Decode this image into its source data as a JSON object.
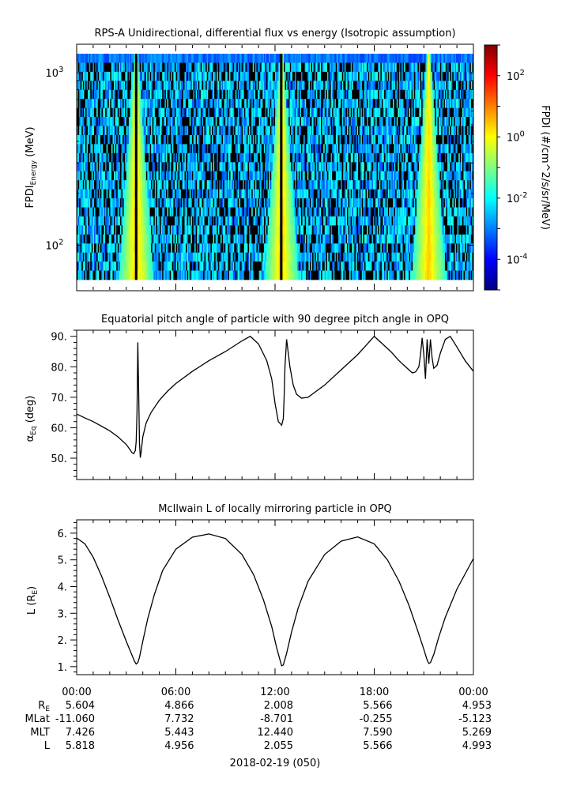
{
  "chart_data": [
    {
      "type": "heatmap",
      "title": "RPS-A Unidirectional, differential flux vs energy (Isotropic assumption)",
      "ylabel_main": "FPDI",
      "ylabel_sub": "Energy",
      "ylabel_unit": "(MeV)",
      "yscale": "log",
      "ylim": [
        55,
        1450
      ],
      "yticks": [
        {
          "value": 100,
          "base": "10",
          "exp": "2"
        },
        {
          "value": 1000,
          "base": "10",
          "exp": "3"
        }
      ],
      "xlim_hours": [
        0,
        24
      ],
      "energy_channels": 25,
      "time_bins": 320,
      "bright_bands_hours": [
        3.6,
        12.4,
        21.3
      ],
      "dark_bands_hours": [
        3.6,
        12.4
      ],
      "colorbar": {
        "label": "FPDI (#/cm^2/s/sr/MeV)",
        "scale": "log",
        "range_log10": [
          -5,
          3
        ],
        "ticks": [
          {
            "value": 2,
            "base": "10",
            "exp": "2"
          },
          {
            "value": 0,
            "base": "10",
            "exp": "0"
          },
          {
            "value": -2,
            "base": "10",
            "exp": "-2"
          },
          {
            "value": -4,
            "base": "10",
            "exp": "-4"
          }
        ],
        "colormap": [
          "#00007f",
          "#0000ff",
          "#007fff",
          "#00ffff",
          "#7fff7f",
          "#ffff00",
          "#ff7f00",
          "#ff0000",
          "#7f0000"
        ]
      }
    },
    {
      "type": "line",
      "title": "Equatorial pitch angle of particle with 90 degree pitch angle in OPQ",
      "ylabel_sym": "α",
      "ylabel_sub": "Eq",
      "ylabel_unit": "(deg)",
      "ylim": [
        43,
        92
      ],
      "yticks": [
        50,
        60,
        70,
        80,
        90
      ],
      "ytick_labels": [
        "50.",
        "60.",
        "70.",
        "80.",
        "90."
      ],
      "xlim_hours": [
        0,
        24
      ],
      "series": [
        {
          "x": [
            0,
            0.5,
            1.0,
            1.5,
            2.0,
            2.5,
            3.0,
            3.2,
            3.35,
            3.45,
            3.55,
            3.6,
            3.65,
            3.7,
            3.75,
            3.8,
            3.85,
            3.9,
            4.0,
            4.2,
            4.5,
            5.0,
            5.5,
            6.0,
            7.0,
            8.0,
            9.0,
            10.0,
            10.5,
            11.0,
            11.5,
            11.8,
            12.0,
            12.2,
            12.4,
            12.5,
            12.55,
            12.6,
            12.7,
            12.9,
            13.1,
            13.3,
            13.6,
            14.0,
            15.0,
            16.0,
            17.0,
            17.5,
            18.0,
            18.5,
            19.0,
            19.5,
            20.0,
            20.3,
            20.5,
            20.7,
            20.8,
            20.9,
            21.0,
            21.1,
            21.2,
            21.3,
            21.4,
            21.5,
            21.6,
            21.8,
            22.0,
            22.3,
            22.6,
            23.0,
            23.5,
            24.0
          ],
          "y": [
            64.5,
            63.2,
            62,
            60.5,
            59,
            57,
            54.5,
            53,
            51.8,
            51.5,
            52.5,
            55.5,
            65,
            88,
            72,
            55,
            50.2,
            52,
            57,
            61.5,
            65,
            69,
            72,
            74.5,
            78.5,
            82,
            85,
            88.5,
            90,
            87.5,
            82,
            76,
            68,
            62,
            60.8,
            63,
            70,
            80,
            89,
            80,
            74,
            71,
            69.7,
            70,
            74,
            79,
            84,
            87,
            90,
            87.5,
            85,
            82,
            79.5,
            78,
            78.3,
            80,
            84,
            89.5,
            84,
            76,
            89,
            81,
            89,
            83,
            79.5,
            80.5,
            84.5,
            89,
            90,
            86.5,
            82,
            78.5
          ]
        }
      ]
    },
    {
      "type": "line",
      "title": "McIlwain L of locally mirroring particle in OPQ",
      "ylabel_main": "L (R",
      "ylabel_sub": "E",
      "ylabel_close": ")",
      "ylim": [
        0.7,
        6.5
      ],
      "yticks": [
        1,
        2,
        3,
        4,
        5,
        6
      ],
      "ytick_labels": [
        "1.",
        "2.",
        "3.",
        "4.",
        "5.",
        "6."
      ],
      "xlim_hours": [
        0,
        24
      ],
      "series": [
        {
          "x": [
            0,
            0.5,
            1.0,
            1.5,
            2.0,
            2.5,
            3.0,
            3.3,
            3.5,
            3.6,
            3.7,
            3.8,
            4.0,
            4.3,
            4.7,
            5.2,
            6.0,
            7.0,
            8.0,
            9.0,
            10.0,
            10.7,
            11.3,
            11.8,
            12.1,
            12.3,
            12.4,
            12.5,
            12.7,
            13.0,
            13.4,
            14.0,
            15.0,
            16.0,
            17.0,
            18.0,
            18.8,
            19.5,
            20.1,
            20.6,
            21.0,
            21.2,
            21.3,
            21.4,
            21.6,
            21.9,
            22.3,
            23.0,
            24.0
          ],
          "y": [
            5.82,
            5.6,
            5.1,
            4.4,
            3.6,
            2.75,
            1.95,
            1.5,
            1.2,
            1.1,
            1.15,
            1.35,
            1.95,
            2.8,
            3.7,
            4.6,
            5.4,
            5.85,
            5.97,
            5.8,
            5.2,
            4.45,
            3.5,
            2.5,
            1.7,
            1.25,
            1.03,
            1.06,
            1.5,
            2.3,
            3.2,
            4.2,
            5.2,
            5.7,
            5.86,
            5.6,
            5.0,
            4.2,
            3.3,
            2.4,
            1.65,
            1.25,
            1.12,
            1.15,
            1.45,
            2.1,
            2.85,
            3.9,
            5.05
          ]
        }
      ]
    }
  ],
  "xaxis": {
    "tick_labels": [
      "00:00",
      "06:00",
      "12:00",
      "18:00",
      "00:00"
    ],
    "tick_hours": [
      0,
      6,
      12,
      18,
      24
    ],
    "date_label": "2018-02-19 (050)"
  },
  "ephemeris": {
    "rows": [
      {
        "label": "R",
        "label_sub": "E",
        "values": [
          "5.604",
          "4.866",
          "2.008",
          "5.566",
          "4.953"
        ]
      },
      {
        "label": "MLat",
        "label_sub": "",
        "values": [
          "-11.060",
          "7.732",
          "-8.701",
          "-0.255",
          "-5.123"
        ]
      },
      {
        "label": "MLT",
        "label_sub": "",
        "values": [
          "7.426",
          "5.443",
          "12.440",
          "7.590",
          "5.269"
        ]
      },
      {
        "label": "L",
        "label_sub": "",
        "values": [
          "5.818",
          "4.956",
          "2.055",
          "5.566",
          "4.993"
        ]
      }
    ]
  }
}
